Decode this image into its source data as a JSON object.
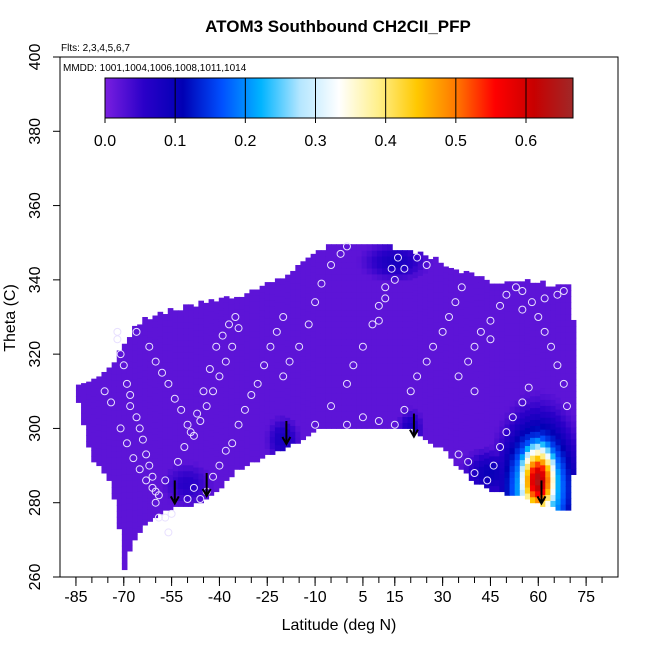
{
  "chart_data": {
    "type": "heatmap",
    "title": "ATOM3 Southbound CH2CII_PFP",
    "annotations": {
      "flights": "Flts: 2,3,4,5,6,7",
      "dates": "MMDD: 1001,1004,1006,1008,1011,1014"
    },
    "xlabel": "Latitude (deg N)",
    "ylabel": "Theta (C)",
    "xlim": [
      -90,
      85
    ],
    "ylim": [
      260,
      400
    ],
    "x_ticks": [
      -85,
      -70,
      -55,
      -40,
      -25,
      -10,
      5,
      15,
      30,
      45,
      60,
      75
    ],
    "x_minor_step": 5,
    "y_ticks": [
      260,
      280,
      300,
      320,
      340,
      360,
      380,
      400
    ],
    "colorbar": {
      "range": [
        0,
        0.667
      ],
      "ticks": [
        0.0,
        0.1,
        0.2,
        0.3,
        0.4,
        0.5,
        0.6
      ],
      "tick_labels": [
        "0.0",
        "0.1",
        "0.2",
        "0.3",
        "0.4",
        "0.5",
        "0.6"
      ],
      "colors": [
        "#7a1fe0",
        "#2a00c8",
        "#0000b4",
        "#0050ff",
        "#00b4ff",
        "#b4e6ff",
        "#ffffff",
        "#fff08c",
        "#ffc800",
        "#ff7800",
        "#ff0000",
        "#c80000",
        "#a02828"
      ]
    },
    "background_value": 0.02,
    "domain_top": [
      [
        -85,
        310
      ],
      [
        -75,
        315
      ],
      [
        -70,
        322
      ],
      [
        -65,
        328
      ],
      [
        -60,
        330
      ],
      [
        -50,
        332
      ],
      [
        -40,
        334
      ],
      [
        -30,
        336
      ],
      [
        -20,
        340
      ],
      [
        -10,
        346
      ],
      [
        -5,
        349
      ],
      [
        5,
        349
      ],
      [
        15,
        348
      ],
      [
        25,
        346
      ],
      [
        35,
        342
      ],
      [
        45,
        339
      ],
      [
        55,
        339
      ],
      [
        65,
        338
      ],
      [
        70,
        338
      ]
    ],
    "domain_bottom": [
      [
        -85,
        310
      ],
      [
        -80,
        292
      ],
      [
        -75,
        288
      ],
      [
        -72,
        278
      ],
      [
        -70,
        262
      ],
      [
        -68,
        268
      ],
      [
        -65,
        273
      ],
      [
        -60,
        277
      ],
      [
        -55,
        279
      ],
      [
        -50,
        279
      ],
      [
        -45,
        281
      ],
      [
        -40,
        284
      ],
      [
        -35,
        289
      ],
      [
        -25,
        293
      ],
      [
        -15,
        297
      ],
      [
        -10,
        300
      ],
      [
        20,
        300
      ],
      [
        25,
        297
      ],
      [
        30,
        295
      ],
      [
        35,
        290
      ],
      [
        40,
        286
      ],
      [
        45,
        284
      ],
      [
        50,
        283
      ],
      [
        55,
        282
      ],
      [
        60,
        280
      ],
      [
        65,
        279
      ],
      [
        70,
        278
      ]
    ],
    "domain_right_edge": [
      [
        70,
        338
      ],
      [
        72,
        320
      ],
      [
        72,
        296
      ],
      [
        71,
        288
      ],
      [
        70,
        278
      ]
    ],
    "features": [
      {
        "lat": 60,
        "theta": 286,
        "dlat": 6,
        "dtheta": 10,
        "value": 0.64
      },
      {
        "lat": 60,
        "theta": 284,
        "dlat": 10,
        "dtheta": 16,
        "value": 0.32
      },
      {
        "lat": 60,
        "theta": 291,
        "dlat": 10,
        "dtheta": 10,
        "value": 0.1
      },
      {
        "lat": 45,
        "theta": 288,
        "dlat": 8,
        "dtheta": 6,
        "value": 0.1
      },
      {
        "lat": -20,
        "theta": 297,
        "dlat": 5,
        "dtheta": 6,
        "value": 0.08
      },
      {
        "lat": 20,
        "theta": 300,
        "dlat": 4,
        "dtheta": 5,
        "value": 0.08
      },
      {
        "lat": 15,
        "theta": 345,
        "dlat": 10,
        "dtheta": 5,
        "value": 0.08
      },
      {
        "lat": -50,
        "theta": 285,
        "dlat": 8,
        "dtheta": 6,
        "value": 0.06
      }
    ],
    "arrows": [
      {
        "lat": -54,
        "theta": 286
      },
      {
        "lat": -44,
        "theta": 288
      },
      {
        "lat": -19,
        "theta": 302
      },
      {
        "lat": 21,
        "theta": 304
      },
      {
        "lat": 61,
        "theta": 286
      }
    ],
    "sample_points": [
      [
        -72,
        326
      ],
      [
        -72,
        324
      ],
      [
        -71,
        320
      ],
      [
        -70,
        317
      ],
      [
        -69,
        312
      ],
      [
        -68,
        309
      ],
      [
        -68,
        306
      ],
      [
        -66,
        303
      ],
      [
        -65,
        300
      ],
      [
        -64,
        297
      ],
      [
        -63,
        293
      ],
      [
        -62,
        290
      ],
      [
        -61,
        287
      ],
      [
        -60,
        283
      ],
      [
        -60,
        280
      ],
      [
        -59,
        276
      ],
      [
        -57,
        276
      ],
      [
        -56,
        272
      ],
      [
        -55,
        277
      ],
      [
        -50,
        281
      ],
      [
        -48,
        284
      ],
      [
        -46,
        281
      ],
      [
        -44,
        283
      ],
      [
        -42,
        287
      ],
      [
        -40,
        290
      ],
      [
        -38,
        294
      ],
      [
        -36,
        296
      ],
      [
        -34,
        301
      ],
      [
        -32,
        305
      ],
      [
        -30,
        309
      ],
      [
        -28,
        312
      ],
      [
        -26,
        317
      ],
      [
        -24,
        322
      ],
      [
        -22,
        326
      ],
      [
        -20,
        330
      ],
      [
        -66,
        326
      ],
      [
        -62,
        322
      ],
      [
        -60,
        318
      ],
      [
        -58,
        315
      ],
      [
        -56,
        312
      ],
      [
        -54,
        308
      ],
      [
        -52,
        305
      ],
      [
        -50,
        301
      ],
      [
        -48,
        298
      ],
      [
        -46,
        302
      ],
      [
        -44,
        306
      ],
      [
        -42,
        310
      ],
      [
        -40,
        314
      ],
      [
        -38,
        318
      ],
      [
        -36,
        322
      ],
      [
        -34,
        327
      ],
      [
        -76,
        310
      ],
      [
        -74,
        307
      ],
      [
        -71,
        300
      ],
      [
        -69,
        296
      ],
      [
        -67,
        292
      ],
      [
        -65,
        289
      ],
      [
        -63,
        286
      ],
      [
        -61,
        284
      ],
      [
        -59,
        282
      ],
      [
        -57,
        286
      ],
      [
        -53,
        291
      ],
      [
        -51,
        295
      ],
      [
        -49,
        299
      ],
      [
        -47,
        304
      ],
      [
        -45,
        310
      ],
      [
        -43,
        316
      ],
      [
        -41,
        322
      ],
      [
        -39,
        325
      ],
      [
        -37,
        328
      ],
      [
        -35,
        330
      ],
      [
        -20,
        314
      ],
      [
        -18,
        318
      ],
      [
        -15,
        322
      ],
      [
        -12,
        328
      ],
      [
        -10,
        334
      ],
      [
        -8,
        339
      ],
      [
        -5,
        344
      ],
      [
        -2,
        347
      ],
      [
        0,
        349
      ],
      [
        -10,
        301
      ],
      [
        -5,
        306
      ],
      [
        0,
        312
      ],
      [
        2,
        317
      ],
      [
        5,
        322
      ],
      [
        8,
        328
      ],
      [
        10,
        333
      ],
      [
        12,
        338
      ],
      [
        14,
        343
      ],
      [
        16,
        346
      ],
      [
        0,
        301
      ],
      [
        5,
        303
      ],
      [
        10,
        302
      ],
      [
        15,
        301
      ],
      [
        18,
        305
      ],
      [
        20,
        310
      ],
      [
        22,
        314
      ],
      [
        25,
        318
      ],
      [
        27,
        322
      ],
      [
        30,
        326
      ],
      [
        32,
        330
      ],
      [
        34,
        334
      ],
      [
        36,
        338
      ],
      [
        10,
        329
      ],
      [
        12,
        335
      ],
      [
        15,
        340
      ],
      [
        18,
        343
      ],
      [
        22,
        346
      ],
      [
        25,
        344
      ],
      [
        35,
        314
      ],
      [
        38,
        318
      ],
      [
        40,
        322
      ],
      [
        42,
        326
      ],
      [
        45,
        329
      ],
      [
        48,
        333
      ],
      [
        50,
        336
      ],
      [
        53,
        338
      ],
      [
        55,
        337
      ],
      [
        58,
        334
      ],
      [
        60,
        330
      ],
      [
        62,
        326
      ],
      [
        64,
        322
      ],
      [
        66,
        317
      ],
      [
        68,
        312
      ],
      [
        69,
        306
      ],
      [
        35,
        293
      ],
      [
        38,
        291
      ],
      [
        40,
        288
      ],
      [
        44,
        286
      ],
      [
        46,
        290
      ],
      [
        48,
        295
      ],
      [
        50,
        299
      ],
      [
        52,
        303
      ],
      [
        55,
        307
      ],
      [
        57,
        311
      ],
      [
        66,
        336
      ],
      [
        68,
        337
      ],
      [
        62,
        335
      ],
      [
        55,
        332
      ],
      [
        45,
        324
      ],
      [
        40,
        310
      ]
    ]
  }
}
